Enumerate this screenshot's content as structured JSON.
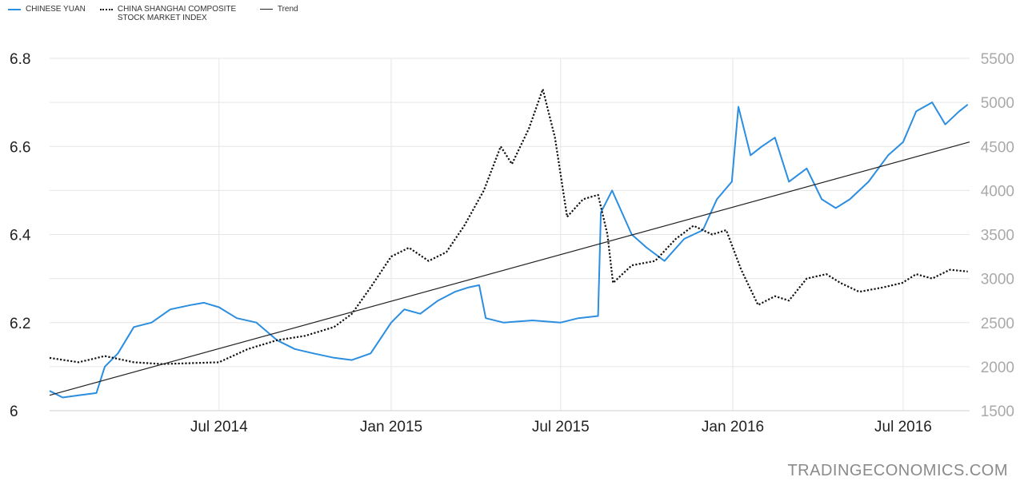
{
  "chart_data": {
    "type": "line",
    "x_ticks": [
      "Jul 2014",
      "Jan 2015",
      "Jul 2015",
      "Jan 2016",
      "Jul 2016"
    ],
    "y_left": {
      "ticks": [
        6,
        6.2,
        6.4,
        6.6,
        6.8
      ],
      "ylim": [
        6.0,
        6.8
      ]
    },
    "y_right": {
      "ticks": [
        1500,
        2000,
        2500,
        3000,
        3500,
        4000,
        4500,
        5000,
        5500
      ],
      "ylim": [
        1500,
        5500
      ]
    },
    "xlim": [
      "2014-01-01",
      "2016-09-10"
    ],
    "grid": true,
    "legend": "top-left",
    "series": [
      {
        "name": "CHINESE YUAN",
        "axis": "left",
        "color": "#2b8ee0",
        "style": "solid",
        "points": [
          [
            "2014-01-01",
            6.045
          ],
          [
            "2014-01-15",
            6.03
          ],
          [
            "2014-02-01",
            6.035
          ],
          [
            "2014-02-20",
            6.04
          ],
          [
            "2014-03-01",
            6.1
          ],
          [
            "2014-03-15",
            6.13
          ],
          [
            "2014-04-01",
            6.19
          ],
          [
            "2014-04-20",
            6.2
          ],
          [
            "2014-05-10",
            6.23
          ],
          [
            "2014-06-01",
            6.24
          ],
          [
            "2014-06-15",
            6.245
          ],
          [
            "2014-07-01",
            6.235
          ],
          [
            "2014-07-20",
            6.21
          ],
          [
            "2014-08-10",
            6.2
          ],
          [
            "2014-09-01",
            6.16
          ],
          [
            "2014-09-20",
            6.14
          ],
          [
            "2014-10-10",
            6.13
          ],
          [
            "2014-11-01",
            6.12
          ],
          [
            "2014-11-20",
            6.115
          ],
          [
            "2014-12-10",
            6.13
          ],
          [
            "2015-01-01",
            6.2
          ],
          [
            "2015-01-15",
            6.23
          ],
          [
            "2015-02-01",
            6.22
          ],
          [
            "2015-02-20",
            6.25
          ],
          [
            "2015-03-10",
            6.27
          ],
          [
            "2015-03-25",
            6.28
          ],
          [
            "2015-04-05",
            6.285
          ],
          [
            "2015-04-12",
            6.21
          ],
          [
            "2015-05-01",
            6.2
          ],
          [
            "2015-06-01",
            6.205
          ],
          [
            "2015-07-01",
            6.2
          ],
          [
            "2015-07-20",
            6.21
          ],
          [
            "2015-08-10",
            6.215
          ],
          [
            "2015-08-13",
            6.45
          ],
          [
            "2015-08-25",
            6.5
          ],
          [
            "2015-09-15",
            6.4
          ],
          [
            "2015-10-01",
            6.37
          ],
          [
            "2015-10-20",
            6.34
          ],
          [
            "2015-11-10",
            6.39
          ],
          [
            "2015-11-30",
            6.41
          ],
          [
            "2015-12-15",
            6.48
          ],
          [
            "2015-12-31",
            6.52
          ],
          [
            "2016-01-07",
            6.69
          ],
          [
            "2016-01-20",
            6.58
          ],
          [
            "2016-02-01",
            6.6
          ],
          [
            "2016-02-15",
            6.62
          ],
          [
            "2016-03-01",
            6.52
          ],
          [
            "2016-03-20",
            6.55
          ],
          [
            "2016-04-05",
            6.48
          ],
          [
            "2016-04-20",
            6.46
          ],
          [
            "2016-05-05",
            6.48
          ],
          [
            "2016-05-25",
            6.52
          ],
          [
            "2016-06-15",
            6.58
          ],
          [
            "2016-07-01",
            6.61
          ],
          [
            "2016-07-15",
            6.68
          ],
          [
            "2016-08-01",
            6.7
          ],
          [
            "2016-08-15",
            6.65
          ],
          [
            "2016-08-30",
            6.68
          ],
          [
            "2016-09-08",
            6.695
          ]
        ]
      },
      {
        "name": "CHINA SHANGHAI COMPOSITE STOCK MARKET INDEX",
        "axis": "right",
        "color": "#111111",
        "style": "dotted",
        "points": [
          [
            "2014-01-01",
            2100
          ],
          [
            "2014-02-01",
            2050
          ],
          [
            "2014-03-01",
            2120
          ],
          [
            "2014-04-01",
            2050
          ],
          [
            "2014-05-01",
            2030
          ],
          [
            "2014-06-01",
            2040
          ],
          [
            "2014-07-01",
            2050
          ],
          [
            "2014-08-01",
            2200
          ],
          [
            "2014-09-01",
            2300
          ],
          [
            "2014-10-01",
            2350
          ],
          [
            "2014-11-01",
            2450
          ],
          [
            "2014-11-20",
            2600
          ],
          [
            "2014-12-10",
            2900
          ],
          [
            "2015-01-01",
            3250
          ],
          [
            "2015-01-20",
            3350
          ],
          [
            "2015-02-10",
            3200
          ],
          [
            "2015-03-01",
            3300
          ],
          [
            "2015-03-20",
            3600
          ],
          [
            "2015-04-10",
            4000
          ],
          [
            "2015-04-28",
            4500
          ],
          [
            "2015-05-10",
            4300
          ],
          [
            "2015-05-28",
            4700
          ],
          [
            "2015-06-12",
            5150
          ],
          [
            "2015-06-25",
            4600
          ],
          [
            "2015-07-08",
            3700
          ],
          [
            "2015-07-25",
            3900
          ],
          [
            "2015-08-10",
            3950
          ],
          [
            "2015-08-20",
            3500
          ],
          [
            "2015-08-26",
            2950
          ],
          [
            "2015-09-15",
            3150
          ],
          [
            "2015-10-10",
            3200
          ],
          [
            "2015-11-01",
            3450
          ],
          [
            "2015-11-20",
            3600
          ],
          [
            "2015-12-10",
            3500
          ],
          [
            "2015-12-25",
            3550
          ],
          [
            "2016-01-10",
            3100
          ],
          [
            "2016-01-28",
            2700
          ],
          [
            "2016-02-15",
            2800
          ],
          [
            "2016-03-01",
            2750
          ],
          [
            "2016-03-20",
            3000
          ],
          [
            "2016-04-10",
            3050
          ],
          [
            "2016-04-25",
            2950
          ],
          [
            "2016-05-15",
            2850
          ],
          [
            "2016-06-10",
            2900
          ],
          [
            "2016-06-30",
            2950
          ],
          [
            "2016-07-15",
            3050
          ],
          [
            "2016-08-01",
            3000
          ],
          [
            "2016-08-20",
            3100
          ],
          [
            "2016-09-08",
            3080
          ]
        ]
      },
      {
        "name": "Trend",
        "axis": "left",
        "color": "#222222",
        "style": "solid",
        "points": [
          [
            "2014-01-01",
            6.035
          ],
          [
            "2016-09-10",
            6.61
          ]
        ]
      }
    ]
  },
  "legend": {
    "items": [
      {
        "label": "CHINESE YUAN"
      },
      {
        "label": "CHINA SHANGHAI COMPOSITE STOCK MARKET INDEX"
      },
      {
        "label": "Trend"
      }
    ]
  },
  "watermark": "TRADINGECONOMICS.COM"
}
